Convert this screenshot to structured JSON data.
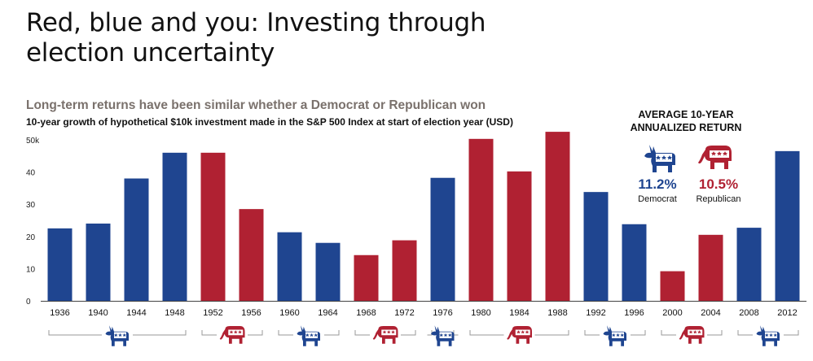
{
  "header": {
    "title": "Red, blue and you: Investing through election uncertainty",
    "subtitle": "Long-term returns have been similar whether a Democrat or Republican won",
    "caption": "10-year growth of hypothetical $10k investment made in the S&P 500 Index at start of election year (USD)"
  },
  "average": {
    "title": "AVERAGE 10-YEAR ANNUALIZED RETURN",
    "democrat": {
      "value": "11.2%",
      "label": "Democrat",
      "icon": "donkey-icon"
    },
    "republican": {
      "value": "10.5%",
      "label": "Republican",
      "icon": "elephant-icon"
    }
  },
  "colors": {
    "democrat": "#1f4590",
    "republican": "#b02132",
    "axis": "#444444",
    "bracket": "#9a9a9a"
  },
  "chart_data": {
    "type": "bar",
    "title": "10-year growth of hypothetical $10k investment made in the S&P 500 Index at start of election year (USD)",
    "xlabel": "",
    "ylabel": "",
    "ylim": [
      0,
      50
    ],
    "yticks": [
      "0",
      "10",
      "20",
      "30",
      "40",
      "50k"
    ],
    "ytick_values": [
      0,
      10,
      20,
      30,
      40,
      50
    ],
    "grid": false,
    "categories": [
      "1936",
      "1940",
      "1944",
      "1948",
      "1952",
      "1956",
      "1960",
      "1964",
      "1968",
      "1972",
      "1976",
      "1980",
      "1984",
      "1988",
      "1992",
      "1996",
      "2000",
      "2004",
      "2008",
      "2012"
    ],
    "values": [
      22.5,
      24,
      38,
      46,
      46,
      28.5,
      21.3,
      18,
      14.2,
      18.8,
      38.2,
      50.3,
      40.2,
      52.5,
      33.8,
      23.8,
      9.2,
      20.5,
      22.7,
      46.5
    ],
    "party": [
      "D",
      "D",
      "D",
      "D",
      "R",
      "R",
      "D",
      "D",
      "R",
      "R",
      "D",
      "R",
      "R",
      "R",
      "D",
      "D",
      "R",
      "R",
      "D",
      "D"
    ],
    "party_groups": [
      {
        "party": "D",
        "start": 0,
        "end": 3
      },
      {
        "party": "R",
        "start": 4,
        "end": 5
      },
      {
        "party": "D",
        "start": 6,
        "end": 7
      },
      {
        "party": "R",
        "start": 8,
        "end": 9
      },
      {
        "party": "D",
        "start": 10,
        "end": 10
      },
      {
        "party": "R",
        "start": 11,
        "end": 13
      },
      {
        "party": "D",
        "start": 14,
        "end": 15
      },
      {
        "party": "R",
        "start": 16,
        "end": 17
      },
      {
        "party": "D",
        "start": 18,
        "end": 19
      }
    ]
  }
}
